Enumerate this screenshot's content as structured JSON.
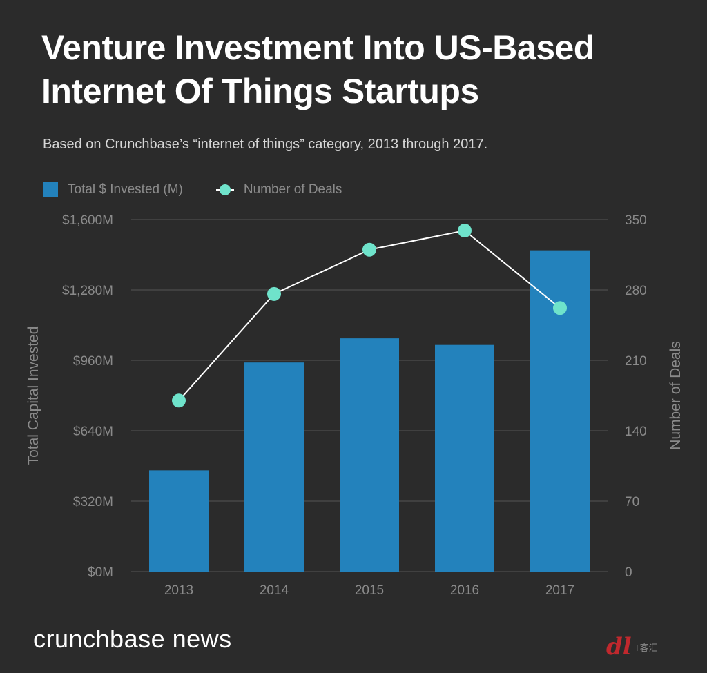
{
  "title": "Venture Investment Into US-Based Internet Of Things Startups",
  "subtitle": "Based on Crunchbase’s “internet of things” category, 2013 through 2017.",
  "legend": {
    "bars_label": "Total $ Invested (M)",
    "line_label": "Number of Deals"
  },
  "brand": "crunchbase news",
  "watermark": {
    "mark": "dl",
    "text": "T客汇"
  },
  "colors": {
    "background": "#2b2b2b",
    "bar": "#2382bc",
    "line": "#ffffff",
    "point": "#6fe3cb",
    "axis_text": "#8a8a8a",
    "grid": "#555555"
  },
  "chart_data": {
    "type": "bar",
    "categories": [
      "2013",
      "2014",
      "2015",
      "2016",
      "2017"
    ],
    "series": [
      {
        "name": "Total $ Invested (M)",
        "axis": "left",
        "type": "bar",
        "values": [
          460,
          950,
          1060,
          1030,
          1460
        ]
      },
      {
        "name": "Number of Deals",
        "axis": "right",
        "type": "line",
        "values": [
          170,
          276,
          320,
          339,
          262
        ]
      }
    ],
    "ylabel": "Total Capital Invested",
    "y2label": "Number of Deals",
    "ylim": [
      0,
      1600
    ],
    "y2lim": [
      0,
      350
    ],
    "yticks": [
      "$0M",
      "$320M",
      "$640M",
      "$960M",
      "$1,280M",
      "$1,600M"
    ],
    "y2ticks": [
      "0",
      "70",
      "140",
      "210",
      "280",
      "350"
    ],
    "grid": true,
    "legend_position": "top-left"
  }
}
